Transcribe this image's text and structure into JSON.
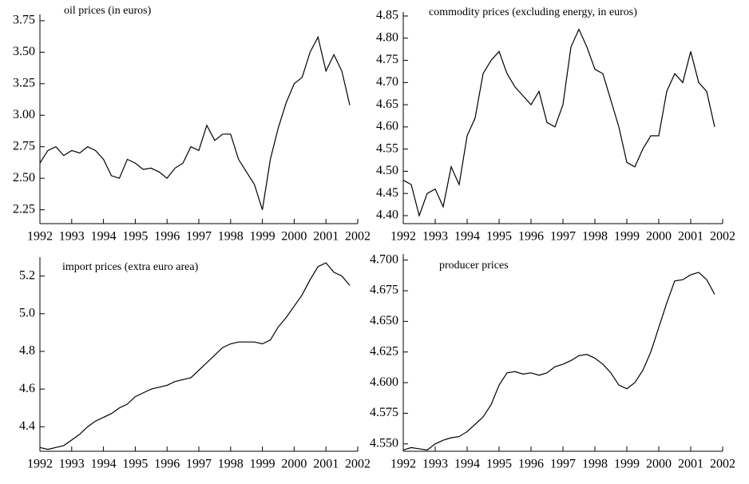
{
  "chart_data": [
    {
      "type": "line",
      "title": "oil prices (in euros)",
      "color": "#000000",
      "x": [
        1992,
        1992.25,
        1992.5,
        1992.75,
        1993,
        1993.25,
        1993.5,
        1993.75,
        1994,
        1994.25,
        1994.5,
        1994.75,
        1995,
        1995.25,
        1995.5,
        1995.75,
        1996,
        1996.25,
        1996.5,
        1996.75,
        1997,
        1997.25,
        1997.5,
        1997.75,
        1998,
        1998.25,
        1998.5,
        1998.75,
        1999,
        1999.25,
        1999.5,
        1999.75,
        2000,
        2000.25,
        2000.5,
        2000.75,
        2001,
        2001.25,
        2001.5,
        2001.75
      ],
      "values": [
        2.62,
        2.72,
        2.75,
        2.68,
        2.72,
        2.7,
        2.75,
        2.72,
        2.65,
        2.52,
        2.5,
        2.65,
        2.62,
        2.57,
        2.58,
        2.55,
        2.5,
        2.58,
        2.62,
        2.75,
        2.72,
        2.92,
        2.8,
        2.85,
        2.85,
        2.65,
        2.55,
        2.45,
        2.25,
        2.65,
        2.9,
        3.1,
        3.25,
        3.3,
        3.5,
        3.62,
        3.35,
        3.48,
        3.35,
        3.08
      ],
      "xlim": [
        1992,
        2002
      ],
      "xticks": [
        1992,
        1993,
        1994,
        1995,
        1996,
        1997,
        1998,
        1999,
        2000,
        2001,
        2002
      ],
      "ylim": [
        2.14,
        3.8
      ],
      "yticks": [
        2.25,
        {
          "value": 2.5,
          "label": "2.50"
        },
        2.75,
        {
          "value": 3,
          "label": "3.00"
        },
        3.25,
        {
          "value": 3.5,
          "label": "3.50"
        },
        3.75
      ]
    },
    {
      "type": "line",
      "title": "commodity prices (excluding energy, in euros)",
      "color": "#000000",
      "x": [
        1992,
        1992.25,
        1992.5,
        1992.75,
        1993,
        1993.25,
        1993.5,
        1993.75,
        1994,
        1994.25,
        1994.5,
        1994.75,
        1995,
        1995.25,
        1995.5,
        1995.75,
        1996,
        1996.25,
        1996.5,
        1996.75,
        1997,
        1997.25,
        1997.5,
        1997.75,
        1998,
        1998.25,
        1998.5,
        1998.75,
        1999,
        1999.25,
        1999.5,
        1999.75,
        2000,
        2000.25,
        2000.5,
        2000.75,
        2001,
        2001.25,
        2001.5,
        2001.75
      ],
      "values": [
        4.48,
        4.47,
        4.4,
        4.45,
        4.46,
        4.42,
        4.51,
        4.47,
        4.58,
        4.62,
        4.72,
        4.75,
        4.77,
        4.72,
        4.69,
        4.67,
        4.65,
        4.68,
        4.61,
        4.6,
        4.65,
        4.78,
        4.82,
        4.78,
        4.73,
        4.72,
        4.66,
        4.6,
        4.52,
        4.51,
        4.55,
        4.58,
        4.58,
        4.68,
        4.72,
        4.7,
        4.77,
        4.7,
        4.68,
        4.6
      ],
      "xlim": [
        1992,
        2002
      ],
      "xticks": [
        1992,
        1993,
        1994,
        1995,
        1996,
        1997,
        1998,
        1999,
        2000,
        2001,
        2002
      ],
      "ylim": [
        4.382,
        4.859
      ],
      "yticks": [
        {
          "value": 4.4,
          "label": "4.40"
        },
        4.45,
        {
          "value": 4.5,
          "label": "4.50"
        },
        4.55,
        {
          "value": 4.6,
          "label": "4.60"
        },
        4.65,
        {
          "value": 4.7,
          "label": "4.70"
        },
        4.75,
        {
          "value": 4.8,
          "label": "4.80"
        },
        4.85
      ]
    },
    {
      "type": "line",
      "title": "import prices (extra euro area)",
      "color": "#000000",
      "x": [
        1992,
        1992.25,
        1992.5,
        1992.75,
        1993,
        1993.25,
        1993.5,
        1993.75,
        1994,
        1994.25,
        1994.5,
        1994.75,
        1995,
        1995.25,
        1995.5,
        1995.75,
        1996,
        1996.25,
        1996.5,
        1996.75,
        1997,
        1997.25,
        1997.5,
        1997.75,
        1998,
        1998.25,
        1998.5,
        1998.75,
        1999,
        1999.25,
        1999.5,
        1999.75,
        2000,
        2000.25,
        2000.5,
        2000.75,
        2001,
        2001.25,
        2001.5,
        2001.75
      ],
      "values": [
        4.29,
        4.28,
        4.29,
        4.3,
        4.33,
        4.36,
        4.4,
        4.43,
        4.45,
        4.47,
        4.5,
        4.52,
        4.56,
        4.58,
        4.6,
        4.61,
        4.62,
        4.64,
        4.65,
        4.66,
        4.7,
        4.74,
        4.78,
        4.82,
        4.84,
        4.85,
        4.85,
        4.85,
        4.84,
        4.86,
        4.93,
        4.98,
        5.04,
        5.1,
        5.18,
        5.25,
        5.27,
        5.22,
        5.2,
        5.15
      ],
      "xlim": [
        1992,
        2002
      ],
      "xticks": [
        1992,
        1993,
        1994,
        1995,
        1996,
        1997,
        1998,
        1999,
        2000,
        2001,
        2002
      ],
      "ylim": [
        4.27,
        5.3
      ],
      "yticks": [
        4.4,
        4.6,
        4.8,
        {
          "value": 5,
          "label": "5.0"
        },
        5.2
      ]
    },
    {
      "type": "line",
      "title": "producer prices",
      "color": "#000000",
      "x": [
        1992,
        1992.25,
        1992.5,
        1992.75,
        1993,
        1993.25,
        1993.5,
        1993.75,
        1994,
        1994.25,
        1994.5,
        1994.75,
        1995,
        1995.25,
        1995.5,
        1995.75,
        1996,
        1996.25,
        1996.5,
        1996.75,
        1997,
        1997.25,
        1997.5,
        1997.75,
        1998,
        1998.25,
        1998.5,
        1998.75,
        1999,
        1999.25,
        1999.5,
        1999.75,
        2000,
        2000.25,
        2000.5,
        2000.75,
        2001,
        2001.25,
        2001.5,
        2001.75
      ],
      "values": [
        4.545,
        4.547,
        4.546,
        4.545,
        4.55,
        4.553,
        4.555,
        4.556,
        4.56,
        4.566,
        4.572,
        4.582,
        4.598,
        4.608,
        4.609,
        4.607,
        4.608,
        4.606,
        4.608,
        4.613,
        4.615,
        4.618,
        4.622,
        4.623,
        4.62,
        4.615,
        4.608,
        4.598,
        4.595,
        4.6,
        4.61,
        4.625,
        4.645,
        4.665,
        4.683,
        4.684,
        4.688,
        4.69,
        4.684,
        4.672
      ],
      "xlim": [
        1992,
        2002
      ],
      "xticks": [
        1992,
        1993,
        1994,
        1995,
        1996,
        1997,
        1998,
        1999,
        2000,
        2001,
        2002
      ],
      "ylim": [
        4.544,
        4.705
      ],
      "yticks": [
        {
          "value": 4.55,
          "label": "4.550"
        },
        {
          "value": 4.575,
          "label": "4.575"
        },
        {
          "value": 4.6,
          "label": "4.600"
        },
        {
          "value": 4.625,
          "label": "4.625"
        },
        {
          "value": 4.65,
          "label": "4.650"
        },
        {
          "value": 4.675,
          "label": "4.675"
        },
        {
          "value": 4.7,
          "label": "4.700"
        }
      ]
    }
  ]
}
